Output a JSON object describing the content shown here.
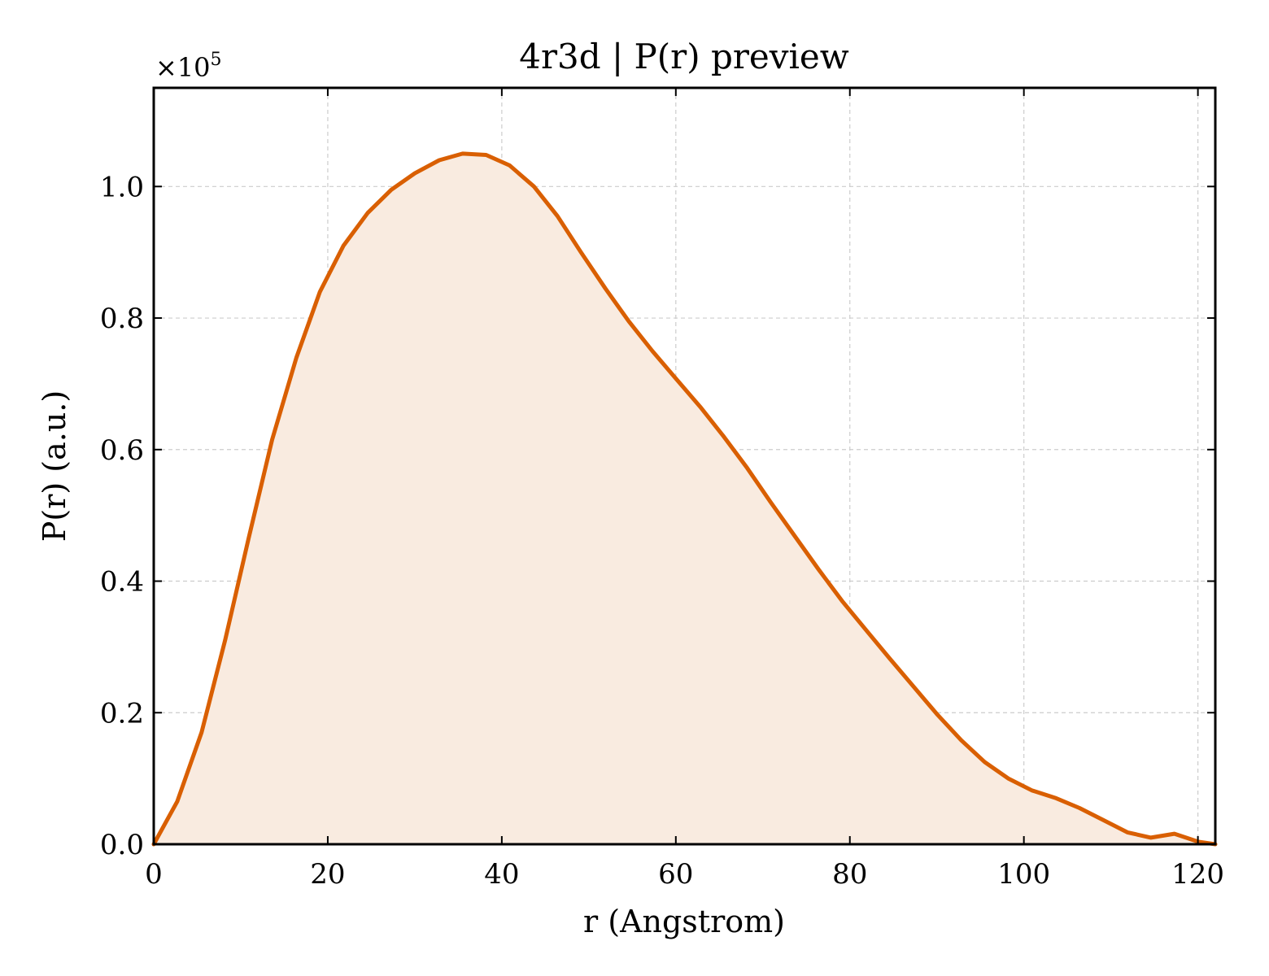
{
  "chart_data": {
    "type": "area",
    "title": "4r3d | P(r) preview",
    "xlabel": "r (Angstrom)",
    "ylabel": "P(r) (a.u.)",
    "y_multiplier": "×10",
    "y_exponent": "5",
    "xlim": [
      0,
      122
    ],
    "ylim": [
      0,
      1.15
    ],
    "xticks": [
      0,
      20,
      40,
      60,
      80,
      100,
      120
    ],
    "xtick_labels": [
      "0",
      "20",
      "40",
      "60",
      "80",
      "100",
      "120"
    ],
    "yticks": [
      0.0,
      0.2,
      0.4,
      0.6,
      0.8,
      1.0
    ],
    "ytick_labels": [
      "0.0",
      "0.2",
      "0.4",
      "0.6",
      "0.8",
      "1.0"
    ],
    "grid": true,
    "legend": "none",
    "line_color": "#d95f02",
    "fill_color": "#f9ebe0",
    "series": [
      {
        "x": [
          0,
          2.7,
          5.5,
          8.2,
          10.9,
          13.6,
          16.4,
          19.1,
          21.8,
          24.6,
          27.3,
          30.0,
          32.8,
          35.5,
          38.2,
          40.9,
          43.7,
          46.4,
          49.1,
          51.9,
          54.6,
          57.3,
          60.0,
          62.8,
          65.5,
          68.2,
          70.9,
          73.7,
          76.4,
          79.1,
          81.9,
          84.6,
          87.3,
          90.0,
          92.8,
          95.5,
          98.2,
          100.9,
          103.7,
          106.4,
          109.1,
          111.9,
          114.6,
          117.3,
          120.0,
          122.0
        ],
        "y": [
          0.0,
          0.065,
          0.17,
          0.31,
          0.465,
          0.615,
          0.74,
          0.84,
          0.91,
          0.96,
          0.995,
          1.02,
          1.04,
          1.05,
          1.048,
          1.032,
          1.0,
          0.955,
          0.9,
          0.845,
          0.795,
          0.75,
          0.708,
          0.665,
          0.62,
          0.572,
          0.52,
          0.468,
          0.418,
          0.37,
          0.325,
          0.282,
          0.24,
          0.198,
          0.158,
          0.125,
          0.1,
          0.082,
          0.07,
          0.055,
          0.037,
          0.018,
          0.01,
          0.016,
          0.004,
          0.0
        ]
      }
    ]
  }
}
